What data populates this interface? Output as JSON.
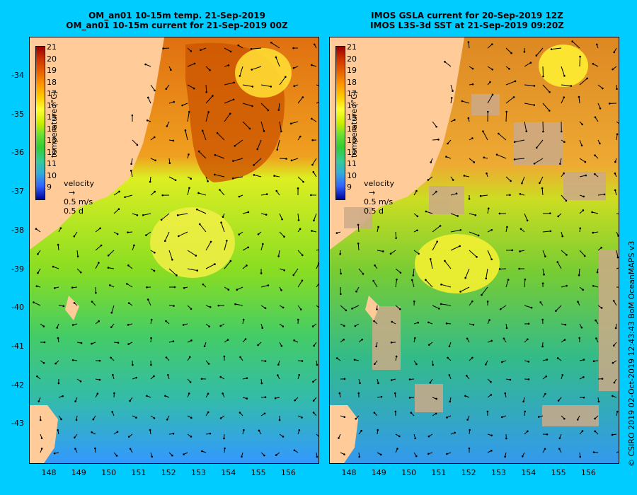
{
  "left_panel": {
    "title_line1": "OM_an01 10-15m temp. 21-Sep-2019",
    "title_line2": "OM_an01 10-15m current for 21-Sep-2019 00Z"
  },
  "right_panel": {
    "title_line1": "IMOS GSLA current for 20-Sep-2019 12Z",
    "title_line2": "IMOS L3S-3d SST at 21-Sep-2019 09:20Z"
  },
  "colorbar": {
    "title": "temperature (°C)",
    "labels": [
      "21",
      "20",
      "19",
      "18",
      "17",
      "16",
      "15",
      "14",
      "13",
      "12",
      "11",
      "10",
      "9"
    ]
  },
  "velocity_legend": {
    "label": "velocity",
    "speed": "0.5 m/s",
    "time": "0.5 d"
  },
  "y_ticks": [
    "-34",
    "-35",
    "-36",
    "-37",
    "-38",
    "-39",
    "-40",
    "-41",
    "-42",
    "-43"
  ],
  "x_ticks": [
    "148",
    "149",
    "150",
    "151",
    "152",
    "153",
    "154",
    "155",
    "156"
  ],
  "credit": "© CSIRO 2019   02-Oct-2019 12:43:43 BoM OceanMAPS v3",
  "colors": {
    "background": "#00ccff",
    "land": "#ffcc99",
    "cloud": "#ccaa88",
    "warm": "#dd6600",
    "mid": "#ffee33",
    "cool": "#33cc33",
    "cold": "#3399ff"
  }
}
